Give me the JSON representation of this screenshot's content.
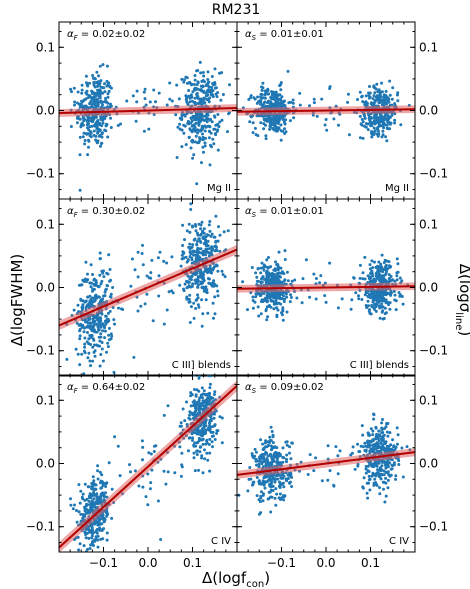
{
  "figure": {
    "title": "RM231",
    "xlabel": "Δ(logf",
    "xlabel_sub": "con",
    "xlabel_close": ")",
    "ylabel_left": "Δ(logFWHM)",
    "ylabel_right": "Δ(logσ",
    "ylabel_right_sub": "line",
    "ylabel_right_close": ")",
    "point_color": "#1f77b4",
    "line_color": "#b30000",
    "band_color": "#e06060"
  },
  "chart_data": [
    {
      "type": "scatter",
      "panel": "Mg II FWHM",
      "label": "Mg II",
      "alpha_symbol": "F",
      "alpha_value_text": "= 0.02±0.02",
      "slope": 0.02,
      "intercept": 0.0,
      "clusters": [
        {
          "x_center": -0.12,
          "x_spread": 0.035,
          "y_center": 0.0,
          "y_spread": 0.03,
          "n": 330
        },
        {
          "x_center": 0.12,
          "x_spread": 0.035,
          "y_center": 0.0,
          "y_spread": 0.03,
          "n": 330
        },
        {
          "x_center": 0.0,
          "x_spread": 0.08,
          "y_center": 0.0,
          "y_spread": 0.025,
          "n": 40
        }
      ],
      "xlim": [
        -0.2,
        0.2
      ],
      "ylim": [
        -0.14,
        0.14
      ]
    },
    {
      "type": "scatter",
      "panel": "Mg II sigma",
      "label": "Mg II",
      "alpha_symbol": "S",
      "alpha_value_text": "= 0.01±0.01",
      "slope": 0.01,
      "intercept": 0.0,
      "clusters": [
        {
          "x_center": -0.12,
          "x_spread": 0.035,
          "y_center": 0.0,
          "y_spread": 0.018,
          "n": 330
        },
        {
          "x_center": 0.12,
          "x_spread": 0.035,
          "y_center": 0.0,
          "y_spread": 0.018,
          "n": 330
        },
        {
          "x_center": 0.0,
          "x_spread": 0.08,
          "y_center": 0.0,
          "y_spread": 0.015,
          "n": 30
        }
      ],
      "xlim": [
        -0.2,
        0.2
      ],
      "ylim": [
        -0.14,
        0.14
      ]
    },
    {
      "type": "scatter",
      "panel": "C III] blends FWHM",
      "label": "C III] blends",
      "alpha_symbol": "F",
      "alpha_value_text": "= 0.30±0.02",
      "slope": 0.3,
      "intercept": 0.0,
      "clusters": [
        {
          "x_center": -0.12,
          "x_spread": 0.035,
          "y_center": -0.04,
          "y_spread": 0.035,
          "n": 330
        },
        {
          "x_center": 0.12,
          "x_spread": 0.035,
          "y_center": 0.04,
          "y_spread": 0.035,
          "n": 330
        },
        {
          "x_center": 0.0,
          "x_spread": 0.08,
          "y_center": 0.0,
          "y_spread": 0.04,
          "n": 40
        }
      ],
      "xlim": [
        -0.2,
        0.2
      ],
      "ylim": [
        -0.14,
        0.14
      ]
    },
    {
      "type": "scatter",
      "panel": "C III] blends sigma",
      "label": "C III] blends",
      "alpha_symbol": "S",
      "alpha_value_text": "= 0.01±0.01",
      "slope": 0.01,
      "intercept": 0.0,
      "clusters": [
        {
          "x_center": -0.12,
          "x_spread": 0.035,
          "y_center": 0.0,
          "y_spread": 0.02,
          "n": 330
        },
        {
          "x_center": 0.12,
          "x_spread": 0.035,
          "y_center": 0.0,
          "y_spread": 0.02,
          "n": 330
        },
        {
          "x_center": 0.0,
          "x_spread": 0.08,
          "y_center": 0.0,
          "y_spread": 0.015,
          "n": 25
        }
      ],
      "xlim": [
        -0.2,
        0.2
      ],
      "ylim": [
        -0.14,
        0.14
      ]
    },
    {
      "type": "scatter",
      "panel": "C IV FWHM",
      "label": "C IV",
      "alpha_symbol": "F",
      "alpha_value_text": "= 0.64±0.02",
      "slope": 0.64,
      "intercept": -0.005,
      "clusters": [
        {
          "x_center": -0.12,
          "x_spread": 0.03,
          "y_center": -0.08,
          "y_spread": 0.025,
          "n": 330
        },
        {
          "x_center": 0.12,
          "x_spread": 0.03,
          "y_center": 0.07,
          "y_spread": 0.025,
          "n": 330
        },
        {
          "x_center": 0.0,
          "x_spread": 0.07,
          "y_center": 0.0,
          "y_spread": 0.04,
          "n": 40
        }
      ],
      "xlim": [
        -0.2,
        0.2
      ],
      "ylim": [
        -0.14,
        0.14
      ]
    },
    {
      "type": "scatter",
      "panel": "C IV sigma",
      "label": "C IV",
      "alpha_symbol": "S",
      "alpha_value_text": "= 0.09±0.02",
      "slope": 0.09,
      "intercept": 0.0,
      "clusters": [
        {
          "x_center": -0.12,
          "x_spread": 0.035,
          "y_center": -0.01,
          "y_spread": 0.025,
          "n": 330
        },
        {
          "x_center": 0.12,
          "x_spread": 0.035,
          "y_center": 0.01,
          "y_spread": 0.025,
          "n": 330
        },
        {
          "x_center": 0.0,
          "x_spread": 0.08,
          "y_center": 0.0,
          "y_spread": 0.02,
          "n": 25
        }
      ],
      "xlim": [
        -0.2,
        0.2
      ],
      "ylim": [
        -0.14,
        0.14
      ]
    }
  ],
  "axes": {
    "x_ticks": [
      -0.1,
      0.0,
      0.1
    ],
    "x_tick_labels": [
      "−0.1",
      "0.0",
      "0.1"
    ],
    "y_ticks": [
      -0.1,
      0.0,
      0.1
    ],
    "y_tick_labels": [
      "−0.1",
      "0.0",
      "0.1"
    ]
  }
}
